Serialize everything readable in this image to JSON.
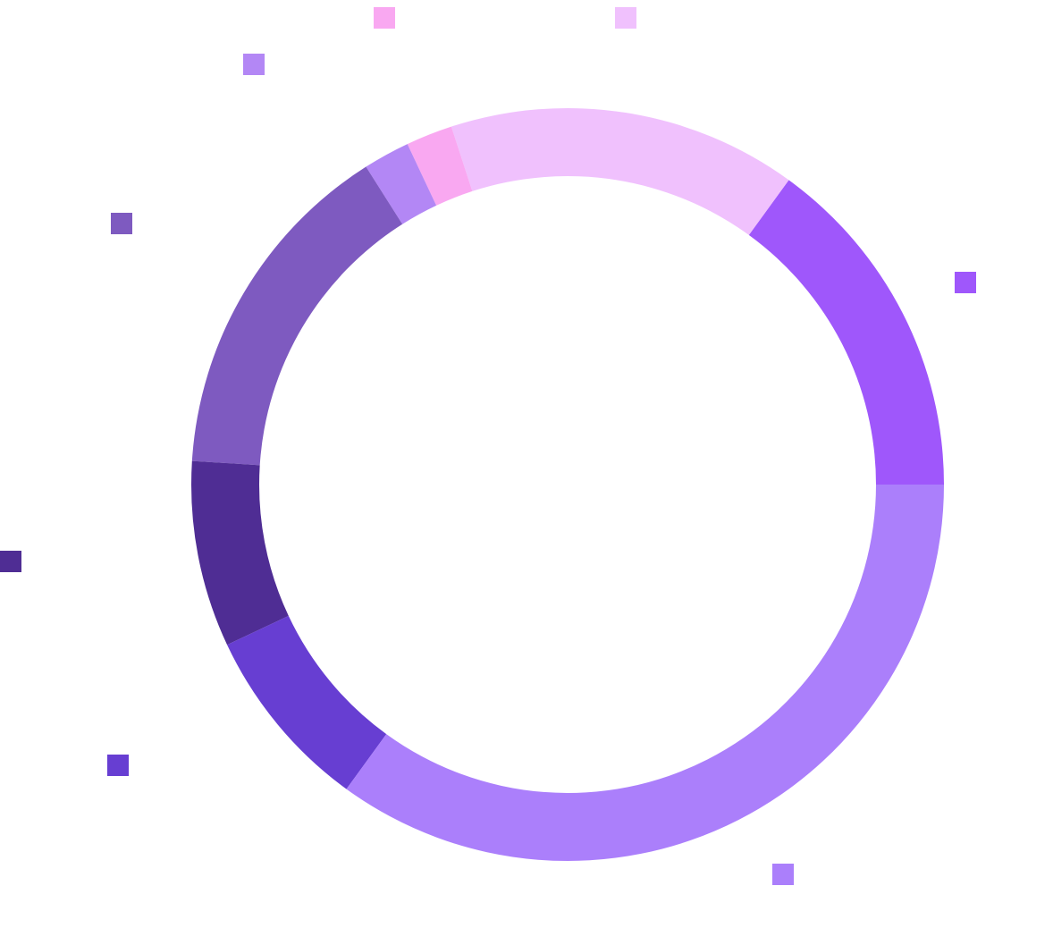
{
  "chart_data": {
    "type": "pie",
    "values": [
      15,
      15,
      2,
      2,
      15,
      8,
      8,
      35
    ],
    "colors": [
      "#9f57fb",
      "#f0c1fd",
      "#f9a8f1",
      "#b387f5",
      "#7e5ac0",
      "#4f2d94",
      "#673ed2",
      "#ab7ffb"
    ],
    "startangle": 0,
    "counterclock": true
  }
}
